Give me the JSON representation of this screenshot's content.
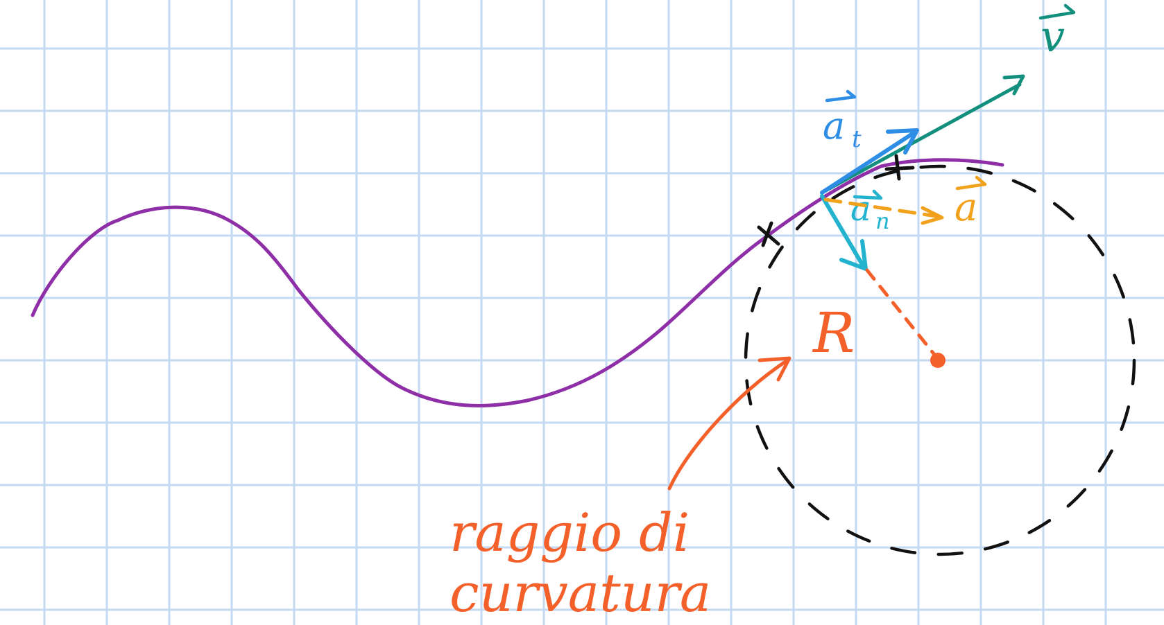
{
  "labels": {
    "radius": "R",
    "caption_line1": "raggio di",
    "caption_line2": "curvatura",
    "vec_v": "v",
    "vec_at": "a",
    "vec_at_sub": "t",
    "vec_an": "a",
    "vec_an_sub": "n",
    "vec_a": "a"
  },
  "colors": {
    "paper": "#ffffff",
    "grid": "#c4daf2",
    "trajectory": "#8e2fa8",
    "osculating_circle": "#111111",
    "velocity": "#12907d",
    "tangential_acceleration": "#2e8ee6",
    "normal_acceleration": "#23b3cf",
    "total_acceleration": "#f2a11c",
    "radius_annotation": "#f4602a"
  }
}
